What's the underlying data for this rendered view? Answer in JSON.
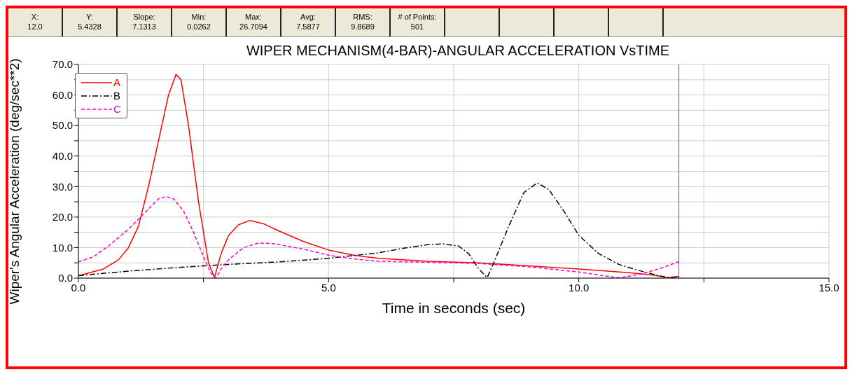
{
  "chart_data": {
    "type": "line",
    "title": "WIPER MECHANISM(4-BAR)-ANGULAR ACCELERATION VsTIME",
    "xlabel": "Time in seconds (sec)",
    "ylabel": "Wiper's Angular Acceleration (deg/sec**2)",
    "annotations": [
      "X:\n12.0",
      "Y:\n5.4328",
      "Slope:\n7.1313",
      "Min:\n0.0262",
      "Max:\n26.7094",
      "Avg:\n7.5877",
      "RMS:\n9.8689",
      "# of Points:\n501"
    ],
    "xlim": [
      0,
      15
    ],
    "xticks": [
      {
        "value": 0,
        "label": "0.0"
      },
      {
        "value": 2.5,
        "label": null
      },
      {
        "value": 5,
        "label": "5.0"
      },
      {
        "value": 7.5,
        "label": null
      },
      {
        "value": 10,
        "label": "10.0"
      },
      {
        "value": 12.5,
        "label": null
      },
      {
        "value": 15,
        "label": "15.0"
      }
    ],
    "ylim": [
      0,
      70
    ],
    "yticks": [
      {
        "value": 0,
        "label": "0.0"
      },
      {
        "value": 5,
        "label": null
      },
      {
        "value": 10,
        "label": "10.0"
      },
      {
        "value": 15,
        "label": null
      },
      {
        "value": 20,
        "label": "20.0"
      },
      {
        "value": 25,
        "label": null
      },
      {
        "value": 30,
        "label": "30.0"
      },
      {
        "value": 35,
        "label": null
      },
      {
        "value": 40,
        "label": "40.0"
      },
      {
        "value": 45,
        "label": null
      },
      {
        "value": 50,
        "label": "50.0"
      },
      {
        "value": 55,
        "label": null
      },
      {
        "value": 60,
        "label": "60.0"
      },
      {
        "value": 65,
        "label": null
      },
      {
        "value": 70,
        "label": "70.0"
      }
    ],
    "grid": true,
    "legend": "top left",
    "marker": "none",
    "ref_lines": [
      {
        "axis": "x",
        "value": 12,
        "color": "#5a5aa8"
      }
    ],
    "series": [
      {
        "name": "A",
        "color": "#ff0000",
        "line_style": "solid",
        "x": [
          0,
          0.5,
          0.8,
          1.0,
          1.2,
          1.4,
          1.6,
          1.8,
          1.95,
          2.05,
          2.2,
          2.4,
          2.6,
          2.72,
          2.85,
          3.0,
          3.2,
          3.43,
          3.7,
          4.0,
          4.5,
          5.0,
          5.5,
          6.0,
          7.0,
          8.0,
          9.0,
          10.0,
          11.0,
          11.5,
          11.75,
          12.0
        ],
        "values": [
          0.8,
          3,
          6,
          10,
          17,
          30,
          45,
          60,
          66.7,
          65,
          50,
          25,
          5,
          0.2,
          8,
          14,
          17.5,
          18.9,
          17.8,
          15.5,
          12,
          9.2,
          7.5,
          6.5,
          5.5,
          5,
          4,
          3,
          1.8,
          1,
          0.2,
          0.5
        ]
      },
      {
        "name": "B",
        "color": "#000000",
        "line_style": "dashdot",
        "x": [
          0,
          1,
          2,
          3,
          4,
          5,
          6,
          6.5,
          7,
          7.3,
          7.6,
          7.8,
          8.0,
          8.17,
          8.3,
          8.6,
          8.9,
          9.17,
          9.4,
          9.7,
          10,
          10.4,
          10.8,
          11.2,
          11.6,
          11.8,
          12.0
        ],
        "values": [
          0.8,
          2.3,
          3.5,
          4.5,
          5.3,
          6.5,
          8.3,
          9.8,
          11,
          11.2,
          10.5,
          8,
          3,
          0.2,
          5,
          17,
          28,
          31.2,
          29,
          22,
          14,
          8,
          4.5,
          2.5,
          0.8,
          0.1,
          0.5
        ]
      },
      {
        "name": "C",
        "color": "#ff00cc",
        "line_style": "dashed",
        "x": [
          0,
          0.3,
          0.6,
          1.0,
          1.3,
          1.6,
          1.75,
          1.9,
          2.1,
          2.3,
          2.5,
          2.65,
          2.75,
          2.85,
          3.0,
          3.3,
          3.6,
          3.9,
          4.5,
          5.0,
          5.5,
          6.0,
          7.0,
          8.0,
          9.0,
          10.0,
          10.5,
          10.8,
          11.2,
          11.6,
          12.0
        ],
        "values": [
          5.3,
          7,
          10.5,
          16,
          21,
          26,
          26.7,
          26,
          22,
          15,
          7,
          1.5,
          0,
          3,
          6,
          10,
          11.5,
          11.3,
          9.5,
          7.5,
          6.3,
          5.5,
          5.2,
          4.8,
          3.7,
          2,
          0.8,
          0.1,
          1.2,
          3,
          5.4
        ]
      }
    ]
  }
}
